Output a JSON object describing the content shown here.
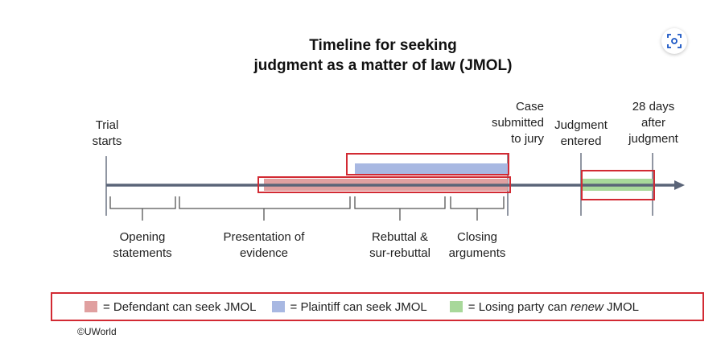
{
  "title": {
    "line1": "Timeline for seeking",
    "line2": "judgment as a matter of law (JMOL)"
  },
  "focus_button": {
    "icon": "focus-frame-icon"
  },
  "milestones": {
    "trial_starts": "Trial\nstarts",
    "case_submitted": "Case\nsubmitted\nto jury",
    "judgment_entered": "Judgment\nentered",
    "days_after": "28 days\nafter\njudgment"
  },
  "phases": {
    "opening": "Opening\nstatements",
    "presentation": "Presentation of\nevidence",
    "rebuttal": "Rebuttal &\nsur-rebuttal",
    "closing": "Closing\narguments"
  },
  "legend": {
    "defendant": "= Defendant can seek JMOL",
    "plaintiff": "= Plaintiff can seek JMOL",
    "losing_prefix": "= Losing party can ",
    "losing_emph": "renew",
    "losing_suffix": " JMOL"
  },
  "colors": {
    "defendant": "#e0a0a0",
    "plaintiff": "#a8b8e2",
    "losing": "#a8d89a",
    "timeline": "#5a6478",
    "highlight": "#d22a33"
  },
  "copyright": "©UWorld"
}
